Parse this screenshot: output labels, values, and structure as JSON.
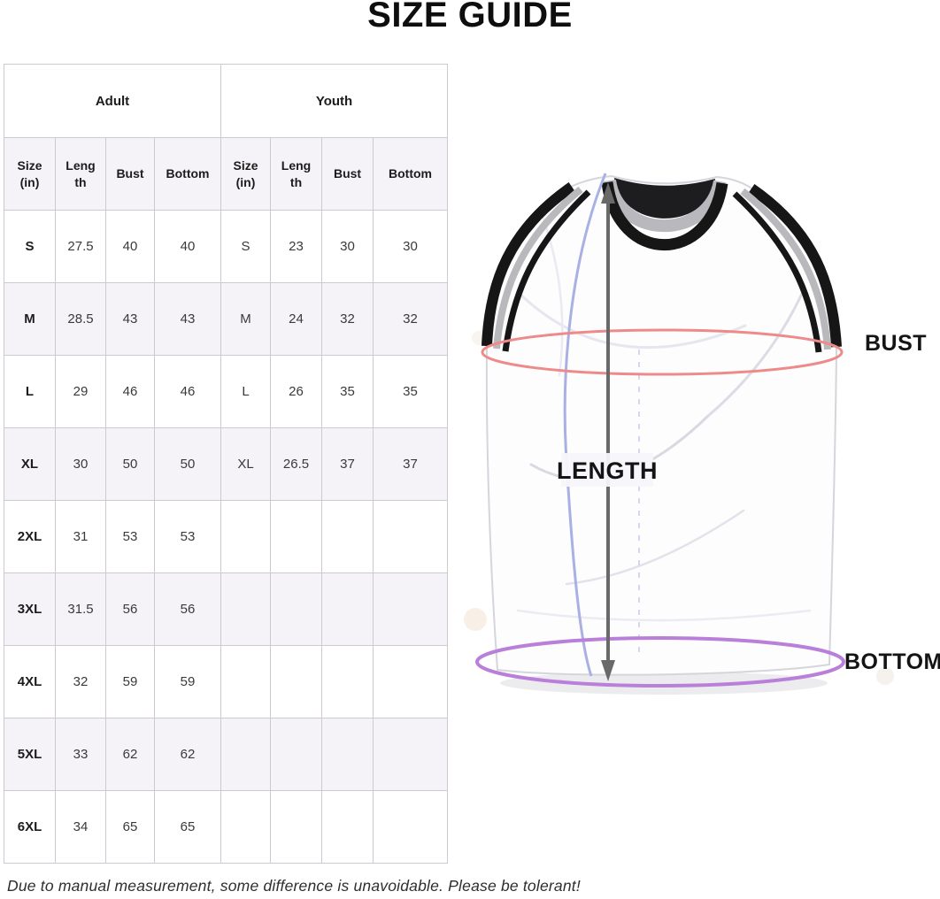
{
  "title": "SIZE GUIDE",
  "table": {
    "groups": [
      "Adult",
      "Youth"
    ],
    "columns": [
      "Size (in)",
      "Length",
      "Bust",
      "Bottom",
      "Size (in)",
      "Length",
      "Bust",
      "Bottom"
    ],
    "rows": [
      [
        "S",
        "27.5",
        "40",
        "40",
        "S",
        "23",
        "30",
        "30"
      ],
      [
        "M",
        "28.5",
        "43",
        "43",
        "M",
        "24",
        "32",
        "32"
      ],
      [
        "L",
        "29",
        "46",
        "46",
        "L",
        "26",
        "35",
        "35"
      ],
      [
        "XL",
        "30",
        "50",
        "50",
        "XL",
        "26.5",
        "37",
        "37"
      ],
      [
        "2XL",
        "31",
        "53",
        "53",
        "",
        "",
        "",
        ""
      ],
      [
        "3XL",
        "31.5",
        "56",
        "56",
        "",
        "",
        "",
        ""
      ],
      [
        "4XL",
        "32",
        "59",
        "59",
        "",
        "",
        "",
        ""
      ],
      [
        "5XL",
        "33",
        "62",
        "62",
        "",
        "",
        "",
        ""
      ],
      [
        "6XL",
        "34",
        "65",
        "65",
        "",
        "",
        "",
        ""
      ]
    ]
  },
  "diagram": {
    "bust_label": "BUST",
    "length_label": "LENGTH",
    "bottom_label": "BOTTOM",
    "colors": {
      "bust_line": "#ee8a8a",
      "bottom_line": "#b97fd9",
      "length_arrow": "#696969",
      "measure_curve": "#a9b0e4",
      "trim_black": "#161616",
      "trim_gray": "#b9b9bd",
      "header_fill": "#f5f2f8"
    }
  },
  "footer": "Due to manual measurement, some difference is unavoidable. Please be tolerant!"
}
